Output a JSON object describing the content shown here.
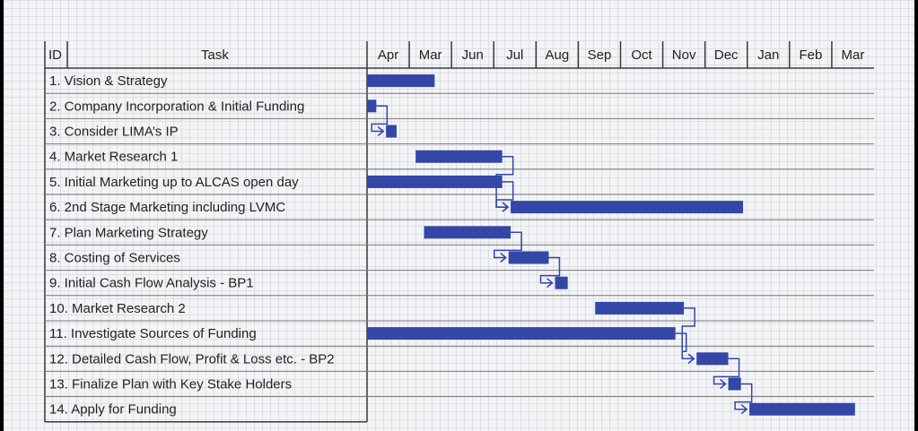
{
  "header": {
    "id": "ID",
    "task": "Task"
  },
  "chart_data": {
    "type": "gantt",
    "months": [
      "Apr",
      "Mar",
      "Jun",
      "Jul",
      "Aug",
      "Sep",
      "Oct",
      "Nov",
      "Dec",
      "Jan",
      "Feb",
      "Mar"
    ],
    "tasks": [
      {
        "label": "1.   Vision & Strategy",
        "start": 0.0,
        "end": 1.6
      },
      {
        "label": "2.   Company Incorporation & Initial Funding",
        "start": 0.0,
        "end": 0.22
      },
      {
        "label": "3.   Consider LIMA’s IP",
        "start": 0.45,
        "end": 0.7
      },
      {
        "label": "4.   Market Research 1",
        "start": 1.15,
        "end": 3.2
      },
      {
        "label": "5.   Initial Marketing up to ALCAS open day",
        "start": 0.0,
        "end": 3.2
      },
      {
        "label": "6.   2nd Stage Marketing including LVMC",
        "start": 3.4,
        "end": 8.9
      },
      {
        "label": "7.   Plan Marketing Strategy",
        "start": 1.35,
        "end": 3.4
      },
      {
        "label": "8.   Costing of Services",
        "start": 3.35,
        "end": 4.3
      },
      {
        "label": "9.   Initial Cash Flow Analysis - BP1",
        "start": 4.45,
        "end": 4.75
      },
      {
        "label": "10.  Market Research 2",
        "start": 5.4,
        "end": 7.5
      },
      {
        "label": "11.  Investigate Sources of Funding",
        "start": 0.0,
        "end": 7.3
      },
      {
        "label": "12. Detailed Cash Flow, Profit & Loss etc. - BP2",
        "start": 7.8,
        "end": 8.55
      },
      {
        "label": "13. Finalize Plan with Key Stake Holders",
        "start": 8.55,
        "end": 8.85
      },
      {
        "label": "14. Apply for Funding",
        "start": 9.05,
        "end": 11.55
      }
    ],
    "dependencies": [
      [
        1,
        2
      ],
      [
        3,
        5
      ],
      [
        4,
        5
      ],
      [
        6,
        7
      ],
      [
        7,
        8
      ],
      [
        9,
        11
      ],
      [
        10,
        11
      ],
      [
        11,
        12
      ],
      [
        12,
        13
      ]
    ]
  }
}
